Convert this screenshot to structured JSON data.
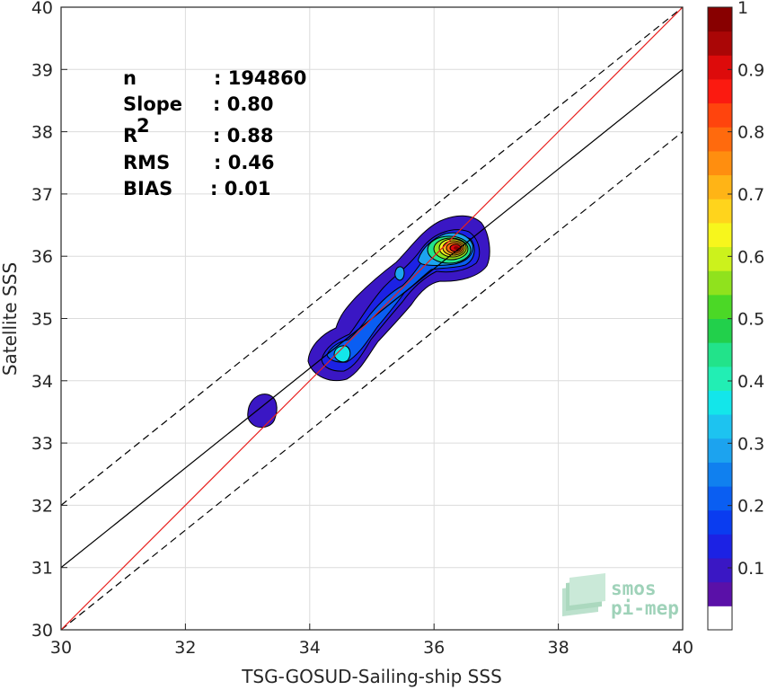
{
  "chart_data": {
    "type": "heatmap",
    "subtype": "density-contour-scatter",
    "xlabel": "TSG-GOSUD-Sailing-ship SSS",
    "ylabel": "Satellite SSS",
    "xlim": [
      30,
      40
    ],
    "ylim": [
      30,
      40
    ],
    "xticks": [
      "30",
      "32",
      "34",
      "36",
      "38",
      "40"
    ],
    "yticks": [
      "30",
      "31",
      "32",
      "33",
      "34",
      "35",
      "36",
      "37",
      "38",
      "39",
      "40"
    ],
    "grid": true,
    "stats": [
      {
        "label": "n",
        "value": ": 194860"
      },
      {
        "label": "Slope",
        "value": ": 0.80"
      },
      {
        "label": "R",
        "sup": "2",
        "value": ": 0.88"
      },
      {
        "label": "RMS",
        "value": ": 0.46"
      },
      {
        "label": "BIAS",
        "value": ": 0.01"
      }
    ],
    "lines": {
      "identity": {
        "slope": 1,
        "intercept": 0,
        "color": "#e8201e"
      },
      "regression": {
        "slope": 0.8,
        "intercept": 7.0,
        "color": "#000000"
      },
      "upper_bound": {
        "slope": 0.8,
        "intercept": 8.0,
        "color": "#000000",
        "dash": true
      },
      "lower_bound": {
        "slope": 0.8,
        "intercept": 6.0,
        "color": "#000000",
        "dash": true
      }
    },
    "density_peak": {
      "x": 36.3,
      "y": 36.1,
      "value": 1.0
    },
    "colorbar": {
      "ticks": [
        "1",
        "0.9",
        "0.8",
        "0.7",
        "0.6",
        "0.5",
        "0.4",
        "0.3",
        "0.2",
        "0.1"
      ],
      "levels": [
        "#ffffff",
        "#5a10a8",
        "#3a17c4",
        "#1c22e4",
        "#0a3cf0",
        "#0a5ef2",
        "#1080ef",
        "#1ca3ef",
        "#1dc3f0",
        "#13e6ea",
        "#22eeb4",
        "#22e38a",
        "#22d04b",
        "#4bd826",
        "#90e21d",
        "#ccf21c",
        "#f7f61c",
        "#ffd41c",
        "#ffb416",
        "#ff8e0f",
        "#ff6a0d",
        "#ff440d",
        "#fb1a10",
        "#dd0b0b",
        "#aa0606",
        "#880000"
      ]
    },
    "watermark": {
      "line1": "smos",
      "line2": "pi-mep"
    }
  }
}
